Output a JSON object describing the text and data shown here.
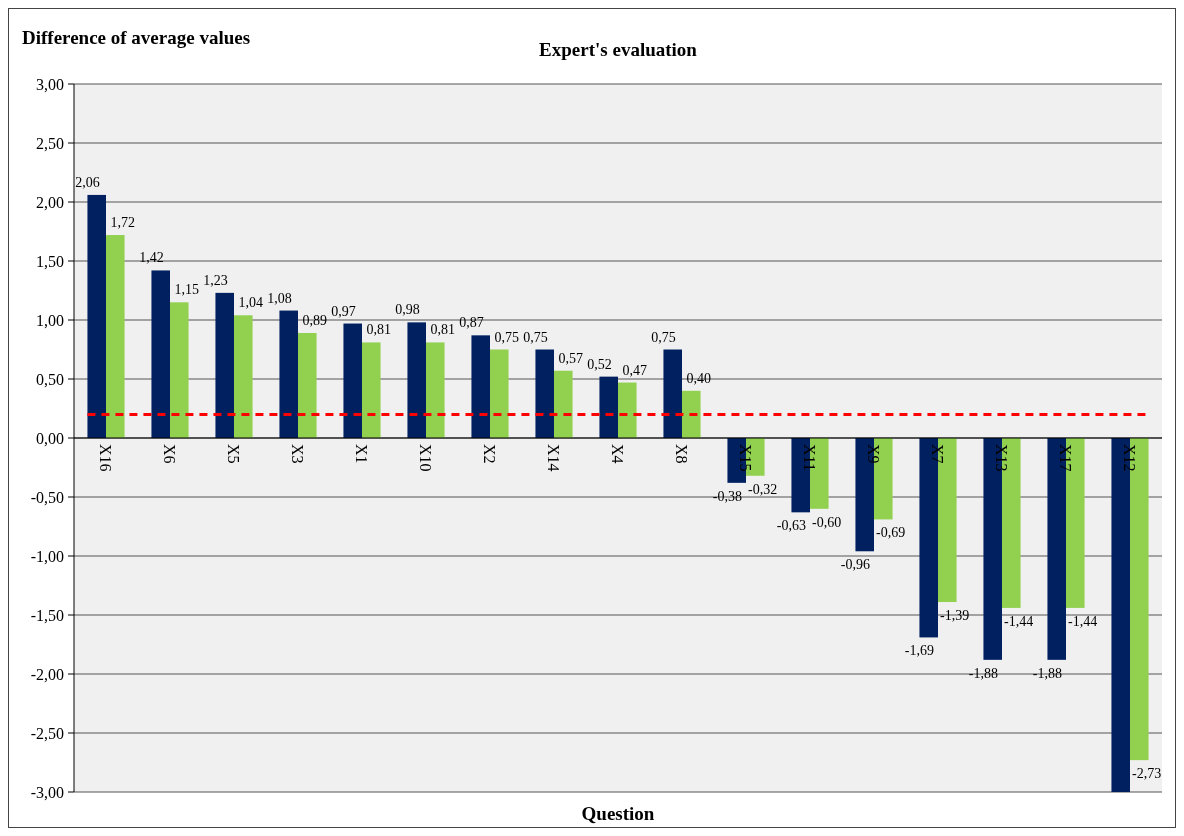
{
  "chart_data": {
    "type": "bar",
    "title": "Expert's evaluation",
    "ylabel": "Difference of average values",
    "xlabel": "Question",
    "categories": [
      "X16",
      "X6",
      "X5",
      "X3",
      "X1",
      "X10",
      "X2",
      "X14",
      "X4",
      "X8",
      "X15",
      "X11",
      "X9",
      "X7",
      "X13",
      "X17",
      "X12"
    ],
    "series": [
      {
        "color": "#002060",
        "values": [
          2.06,
          1.42,
          1.23,
          1.08,
          0.97,
          0.98,
          0.87,
          0.75,
          0.52,
          0.75,
          -0.38,
          -0.63,
          -0.96,
          -1.69,
          -1.88,
          -1.88,
          -3.0
        ],
        "value_labels": [
          "2,06",
          "1,42",
          "1,23",
          "1,08",
          "0,97",
          "0,98",
          "0,87",
          "0,75",
          "0,52",
          "0,75",
          "-0,38",
          "-0,63",
          "-0,96",
          "-1,69",
          "-1,88",
          "-1,88",
          null
        ]
      },
      {
        "color": "#92d050",
        "values": [
          1.72,
          1.15,
          1.04,
          0.89,
          0.81,
          0.81,
          0.75,
          0.57,
          0.47,
          0.4,
          -0.32,
          -0.6,
          -0.69,
          -1.39,
          -1.44,
          -1.44,
          -2.73
        ],
        "value_labels": [
          "1,72",
          "1,15",
          "1,04",
          "0,89",
          "0,81",
          "0,81",
          "0,75",
          "0,57",
          "0,47",
          "0,40",
          "-0,32",
          "-0,60",
          "-0,69",
          "-1,39",
          "-1,44",
          "-1,44",
          "-2,73"
        ]
      }
    ],
    "ylim": [
      -3,
      3
    ],
    "yticks": [
      {
        "value": 3,
        "label": "3,00"
      },
      {
        "value": 2.5,
        "label": "2,50"
      },
      {
        "value": 2,
        "label": "2,00"
      },
      {
        "value": 1.5,
        "label": "1,50"
      },
      {
        "value": 1,
        "label": "1,00"
      },
      {
        "value": 0.5,
        "label": "0,50"
      },
      {
        "value": 0,
        "label": "0,00"
      },
      {
        "value": -0.5,
        "label": "-0,50"
      },
      {
        "value": -1,
        "label": "-1,00"
      },
      {
        "value": -1.5,
        "label": "-1,50"
      },
      {
        "value": -2,
        "label": "-2,00"
      },
      {
        "value": -2.5,
        "label": "-2,50"
      },
      {
        "value": -3,
        "label": "-3,00"
      }
    ],
    "grid": "y",
    "ref_lines": [
      {
        "axis": "y",
        "value": 0.2,
        "color": "#ff0000",
        "line_style": "dashed"
      }
    ]
  }
}
